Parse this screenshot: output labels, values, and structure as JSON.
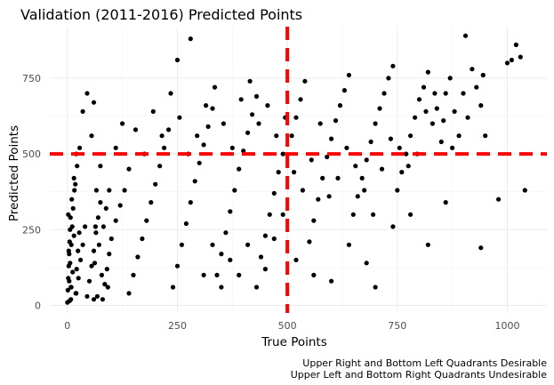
{
  "chart_data": {
    "type": "scatter",
    "title": "Validation (2011-2016) Predicted Points",
    "xlabel": "True Points",
    "ylabel": "Predicted Points",
    "xlim": [
      -40,
      1090
    ],
    "ylim": [
      -25,
      920
    ],
    "x_ticks": [
      0,
      250,
      500,
      750,
      1000
    ],
    "y_ticks": [
      0,
      250,
      500,
      750
    ],
    "grid": true,
    "reference_lines": [
      {
        "axis": "x",
        "value": 500,
        "color": "#ff0000",
        "style": "dashed"
      },
      {
        "axis": "y",
        "value": 500,
        "color": "#ff0000",
        "style": "dashed"
      }
    ],
    "captions": [
      "Upper Right and Bottom Left Quadrants Desirable",
      "Upper Left and Bottom Right Quadrants Undesirable"
    ],
    "point_color": "#000000",
    "points": [
      [
        5,
        15
      ],
      [
        8,
        60
      ],
      [
        12,
        110
      ],
      [
        3,
        180
      ],
      [
        15,
        230
      ],
      [
        20,
        40
      ],
      [
        25,
        90
      ],
      [
        30,
        150
      ],
      [
        35,
        200
      ],
      [
        40,
        260
      ],
      [
        2,
        300
      ],
      [
        10,
        350
      ],
      [
        18,
        400
      ],
      [
        22,
        460
      ],
      [
        28,
        520
      ],
      [
        45,
        30
      ],
      [
        50,
        80
      ],
      [
        55,
        130
      ],
      [
        60,
        180
      ],
      [
        65,
        240
      ],
      [
        70,
        290
      ],
      [
        75,
        340
      ],
      [
        80,
        20
      ],
      [
        85,
        70
      ],
      [
        90,
        120
      ],
      [
        95,
        170
      ],
      [
        100,
        220
      ],
      [
        110,
        280
      ],
      [
        120,
        330
      ],
      [
        130,
        380
      ],
      [
        140,
        40
      ],
      [
        150,
        100
      ],
      [
        160,
        160
      ],
      [
        170,
        220
      ],
      [
        180,
        280
      ],
      [
        190,
        340
      ],
      [
        200,
        400
      ],
      [
        210,
        460
      ],
      [
        220,
        520
      ],
      [
        230,
        580
      ],
      [
        240,
        60
      ],
      [
        250,
        130
      ],
      [
        260,
        200
      ],
      [
        270,
        270
      ],
      [
        280,
        340
      ],
      [
        290,
        410
      ],
      [
        300,
        470
      ],
      [
        310,
        530
      ],
      [
        320,
        590
      ],
      [
        330,
        650
      ],
      [
        340,
        100
      ],
      [
        350,
        170
      ],
      [
        360,
        240
      ],
      [
        370,
        310
      ],
      [
        380,
        380
      ],
      [
        390,
        450
      ],
      [
        400,
        510
      ],
      [
        410,
        570
      ],
      [
        420,
        630
      ],
      [
        430,
        690
      ],
      [
        440,
        160
      ],
      [
        450,
        230
      ],
      [
        460,
        300
      ],
      [
        470,
        370
      ],
      [
        480,
        440
      ],
      [
        490,
        500
      ],
      [
        510,
        560
      ],
      [
        520,
        620
      ],
      [
        530,
        680
      ],
      [
        540,
        740
      ],
      [
        550,
        210
      ],
      [
        560,
        280
      ],
      [
        570,
        350
      ],
      [
        580,
        420
      ],
      [
        590,
        490
      ],
      [
        600,
        550
      ],
      [
        610,
        610
      ],
      [
        620,
        660
      ],
      [
        630,
        710
      ],
      [
        640,
        760
      ],
      [
        650,
        300
      ],
      [
        660,
        360
      ],
      [
        670,
        420
      ],
      [
        680,
        480
      ],
      [
        690,
        540
      ],
      [
        700,
        600
      ],
      [
        710,
        650
      ],
      [
        720,
        700
      ],
      [
        730,
        750
      ],
      [
        740,
        790
      ],
      [
        750,
        380
      ],
      [
        760,
        440
      ],
      [
        770,
        500
      ],
      [
        780,
        560
      ],
      [
        790,
        620
      ],
      [
        800,
        680
      ],
      [
        810,
        720
      ],
      [
        820,
        770
      ],
      [
        830,
        600
      ],
      [
        840,
        650
      ],
      [
        850,
        540
      ],
      [
        860,
        700
      ],
      [
        870,
        750
      ],
      [
        880,
        640
      ],
      [
        890,
        560
      ],
      [
        900,
        700
      ],
      [
        910,
        620
      ],
      [
        920,
        780
      ],
      [
        930,
        720
      ],
      [
        940,
        660
      ],
      [
        950,
        560
      ],
      [
        980,
        350
      ],
      [
        1000,
        800
      ],
      [
        1010,
        810
      ],
      [
        1020,
        860
      ],
      [
        1030,
        820
      ],
      [
        1040,
        380
      ],
      [
        905,
        890
      ],
      [
        940,
        190
      ],
      [
        945,
        760
      ],
      [
        60,
        670
      ],
      [
        280,
        880
      ],
      [
        250,
        810
      ],
      [
        45,
        700
      ],
      [
        35,
        640
      ],
      [
        20,
        500
      ],
      [
        15,
        420
      ],
      [
        55,
        560
      ],
      [
        75,
        460
      ],
      [
        95,
        380
      ],
      [
        110,
        520
      ],
      [
        125,
        600
      ],
      [
        140,
        450
      ],
      [
        155,
        580
      ],
      [
        175,
        500
      ],
      [
        195,
        640
      ],
      [
        215,
        560
      ],
      [
        235,
        700
      ],
      [
        255,
        620
      ],
      [
        275,
        500
      ],
      [
        295,
        560
      ],
      [
        315,
        660
      ],
      [
        335,
        720
      ],
      [
        355,
        600
      ],
      [
        375,
        520
      ],
      [
        395,
        680
      ],
      [
        415,
        740
      ],
      [
        435,
        600
      ],
      [
        455,
        660
      ],
      [
        475,
        560
      ],
      [
        495,
        620
      ],
      [
        515,
        440
      ],
      [
        535,
        380
      ],
      [
        555,
        480
      ],
      [
        575,
        600
      ],
      [
        595,
        360
      ],
      [
        615,
        420
      ],
      [
        635,
        520
      ],
      [
        655,
        460
      ],
      [
        675,
        380
      ],
      [
        695,
        300
      ],
      [
        715,
        450
      ],
      [
        735,
        550
      ],
      [
        755,
        520
      ],
      [
        775,
        460
      ],
      [
        795,
        500
      ],
      [
        815,
        640
      ],
      [
        835,
        700
      ],
      [
        855,
        610
      ],
      [
        875,
        520
      ],
      [
        520,
        150
      ],
      [
        560,
        100
      ],
      [
        600,
        80
      ],
      [
        640,
        200
      ],
      [
        680,
        140
      ],
      [
        700,
        60
      ],
      [
        740,
        260
      ],
      [
        780,
        300
      ],
      [
        820,
        200
      ],
      [
        860,
        340
      ],
      [
        490,
        300
      ],
      [
        470,
        220
      ],
      [
        450,
        120
      ],
      [
        430,
        60
      ],
      [
        410,
        200
      ],
      [
        390,
        100
      ],
      [
        370,
        150
      ],
      [
        350,
        60
      ],
      [
        330,
        200
      ],
      [
        310,
        100
      ],
      [
        60,
        20
      ],
      [
        62,
        140
      ],
      [
        64,
        260
      ],
      [
        66,
        380
      ],
      [
        68,
        30
      ],
      [
        72,
        200
      ],
      [
        78,
        100
      ],
      [
        82,
        260
      ],
      [
        88,
        320
      ],
      [
        92,
        60
      ],
      [
        4,
        80
      ],
      [
        6,
        140
      ],
      [
        9,
        200
      ],
      [
        11,
        260
      ],
      [
        13,
        320
      ],
      [
        16,
        380
      ],
      [
        19,
        40
      ],
      [
        21,
        120
      ],
      [
        24,
        180
      ],
      [
        27,
        240
      ],
      [
        0,
        10
      ],
      [
        1,
        50
      ],
      [
        2,
        90
      ],
      [
        3,
        130
      ],
      [
        4,
        170
      ],
      [
        5,
        210
      ],
      [
        6,
        250
      ],
      [
        7,
        290
      ],
      [
        8,
        20
      ],
      [
        9,
        60
      ]
    ]
  }
}
